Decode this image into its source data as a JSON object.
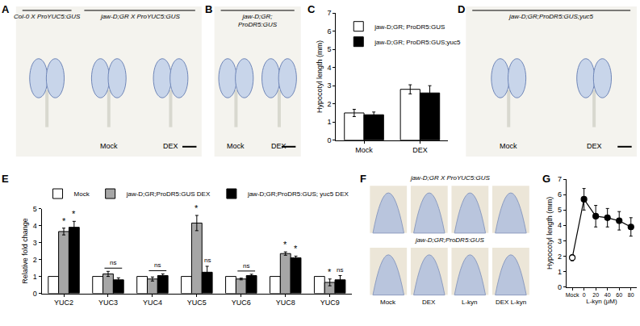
{
  "figure": {
    "panels": [
      {
        "label": "A",
        "kind": "seedlings",
        "captions": [
          {
            "text": "Col-0 X ProYUC5:GUS",
            "conditions": [
              null
            ]
          },
          {
            "text": "jaw-D;GR X ProYUC5:GUS",
            "conditions": [
              "Mock",
              "DEX"
            ]
          }
        ]
      },
      {
        "label": "B",
        "kind": "seedlings",
        "captions": [
          {
            "text": "jaw-D;GR;\nProDR5:GUS",
            "conditions": [
              "Mock",
              "DEX"
            ]
          }
        ]
      },
      {
        "label": "D",
        "kind": "seedlings",
        "captions": [
          {
            "text": "jaw-D;GR;ProDR5:GUS;yuc5",
            "conditions": [
              "Mock",
              "DEX"
            ]
          }
        ]
      },
      {
        "label": "F",
        "kind": "tips",
        "rows": [
          "jaw-D;GR X ProYUC5:GUS",
          "jaw-D;GR;ProDR5:GUS"
        ],
        "conditions": [
          "Mock",
          "DEX",
          "L-kyn",
          "DEX L-kyn"
        ]
      }
    ]
  },
  "chart_data": [
    {
      "panel": "C",
      "type": "bar",
      "categories": [
        "Mock",
        "DEX"
      ],
      "y_label": "Hypocotyl length (mm)",
      "series": [
        {
          "name": "jaw-D;GR; ProDR5:GUS",
          "color": "#ffffff",
          "values": [
            1.5,
            2.8
          ],
          "errors": [
            0.2,
            0.25
          ]
        },
        {
          "name": "jaw-D;GR; ProDR5:GUS;yuc5",
          "color": "#000000",
          "values": [
            1.4,
            2.6
          ],
          "errors": [
            0.15,
            0.4
          ]
        }
      ],
      "ylim": [
        0,
        7
      ],
      "yticks": [
        0,
        1,
        2,
        3,
        4,
        5,
        6,
        7
      ],
      "grid": false,
      "legend": "top"
    },
    {
      "panel": "E",
      "type": "bar",
      "categories": [
        "YUC2",
        "YUC3",
        "YUC4",
        "YUC5",
        "YUC6",
        "YUC8",
        "YUC9"
      ],
      "y_label": "Relative fold change",
      "series": [
        {
          "name": "Mock",
          "color": "#ffffff",
          "values": [
            1,
            1,
            1,
            1,
            1,
            1,
            1
          ]
        },
        {
          "name": "jaw-D;GR;ProDR5:GUS DEX",
          "color": "#a6a6a6",
          "values": [
            3.65,
            1.15,
            0.85,
            4.15,
            0.85,
            2.35,
            0.65
          ],
          "errors": [
            0.2,
            0.15,
            0.12,
            0.45,
            0.05,
            0.1,
            0.2
          ]
        },
        {
          "name": "jaw-D;GR;ProDR5:GUS; yuc5 DEX",
          "color": "#000000",
          "values": [
            3.9,
            0.8,
            1.05,
            1.25,
            1.05,
            2.1,
            0.8
          ],
          "errors": [
            0.35,
            0.12,
            0.1,
            0.35,
            0.08,
            0.1,
            0.25
          ]
        }
      ],
      "annotations": [
        {
          "category": "YUC2",
          "series": [
            "jaw-D;GR;ProDR5:GUS DEX"
          ],
          "text": "*"
        },
        {
          "category": "YUC2",
          "series": [
            "jaw-D;GR;ProDR5:GUS; yuc5 DEX"
          ],
          "text": "*"
        },
        {
          "category": "YUC3",
          "series": [
            "jaw-D;GR;ProDR5:GUS DEX",
            "jaw-D;GR;ProDR5:GUS; yuc5 DEX"
          ],
          "text": "ns"
        },
        {
          "category": "YUC4",
          "series": [
            "jaw-D;GR;ProDR5:GUS DEX",
            "jaw-D;GR;ProDR5:GUS; yuc5 DEX"
          ],
          "text": "ns"
        },
        {
          "category": "YUC5",
          "series": [
            "jaw-D;GR;ProDR5:GUS DEX"
          ],
          "text": "*"
        },
        {
          "category": "YUC5",
          "series": [
            "jaw-D;GR;ProDR5:GUS; yuc5 DEX"
          ],
          "text": "ns"
        },
        {
          "category": "YUC6",
          "series": [
            "jaw-D;GR;ProDR5:GUS DEX",
            "jaw-D;GR;ProDR5:GUS; yuc5 DEX"
          ],
          "text": "ns"
        },
        {
          "category": "YUC8",
          "series": [
            "jaw-D;GR;ProDR5:GUS DEX"
          ],
          "text": "*"
        },
        {
          "category": "YUC8",
          "series": [
            "jaw-D;GR;ProDR5:GUS; yuc5 DEX"
          ],
          "text": "*"
        },
        {
          "category": "YUC9",
          "series": [
            "jaw-D;GR;ProDR5:GUS DEX"
          ],
          "text": "*"
        },
        {
          "category": "YUC9",
          "series": [
            "jaw-D;GR;ProDR5:GUS; yuc5 DEX"
          ],
          "text": "ns"
        }
      ],
      "ylim": [
        0,
        5
      ],
      "yticks": [
        0,
        1,
        2,
        3,
        4,
        5
      ],
      "grid": false,
      "legend": "above"
    },
    {
      "panel": "G",
      "type": "line",
      "categories": [
        "Mock",
        "0",
        "20",
        "40",
        "60",
        "80"
      ],
      "x_label": "L-kyn (μM)",
      "y_label": "Hypocotyl length (mm)",
      "series": [
        {
          "color": "#000000",
          "colors": [
            "#ffffff",
            "#000000",
            "#000000",
            "#000000",
            "#000000",
            "#000000"
          ],
          "values": [
            1.9,
            5.7,
            4.6,
            4.5,
            4.3,
            3.9
          ],
          "errors": [
            0.2,
            0.7,
            0.7,
            0.6,
            0.6,
            0.6
          ]
        }
      ],
      "marker": "circle",
      "line_style": "solid",
      "ylim": [
        0,
        7
      ],
      "yticks": [
        0,
        1,
        2,
        3,
        4,
        5,
        6,
        7
      ],
      "grid": false
    }
  ]
}
